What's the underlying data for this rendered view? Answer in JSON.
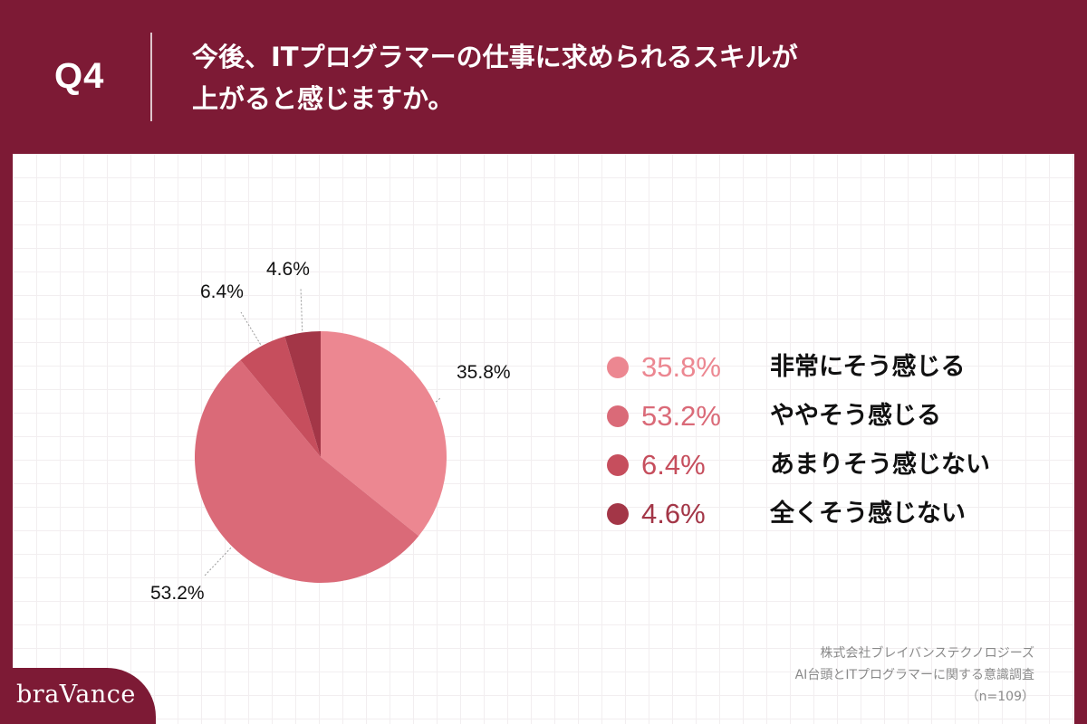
{
  "header": {
    "q_label": "Q4",
    "title_line1": "今後、ITプログラマーの仕事に求められるスキルが",
    "title_line2": "上がると感じますか。"
  },
  "colors": {
    "background": "#7d1a35",
    "panel": "#ffffff"
  },
  "chart_data": {
    "type": "pie",
    "title": "今後、ITプログラマーの仕事に求められるスキルが上がると感じますか。",
    "unit": "%",
    "n": 109,
    "start": "12 o'clock, clockwise",
    "categories": [
      "非常にそう感じる",
      "ややそう感じる",
      "あまりそう感じない",
      "全くそう感じない"
    ],
    "values": [
      35.8,
      53.2,
      6.4,
      4.6
    ],
    "labels": [
      "35.8%",
      "53.2%",
      "6.4%",
      "4.6%"
    ],
    "colors": [
      "#ec8791",
      "#da6a78",
      "#c64e5d",
      "#a33647"
    ],
    "legend": "right"
  },
  "legend": {
    "items": [
      {
        "pct": "35.8%",
        "label": "非常にそう感じる",
        "color": "#ec8791"
      },
      {
        "pct": "53.2%",
        "label": "ややそう感じる",
        "color": "#da6a78"
      },
      {
        "pct": "6.4%",
        "label": "あまりそう感じない",
        "color": "#c64e5d"
      },
      {
        "pct": "4.6%",
        "label": "全くそう感じない",
        "color": "#a33647"
      }
    ]
  },
  "source": {
    "line1": "株式会社ブレイバンステクノロジーズ",
    "line2": "AI台頭とITプログラマーに関する意識調査",
    "line3": "（n=109）"
  },
  "brand": {
    "name": "braVance"
  }
}
